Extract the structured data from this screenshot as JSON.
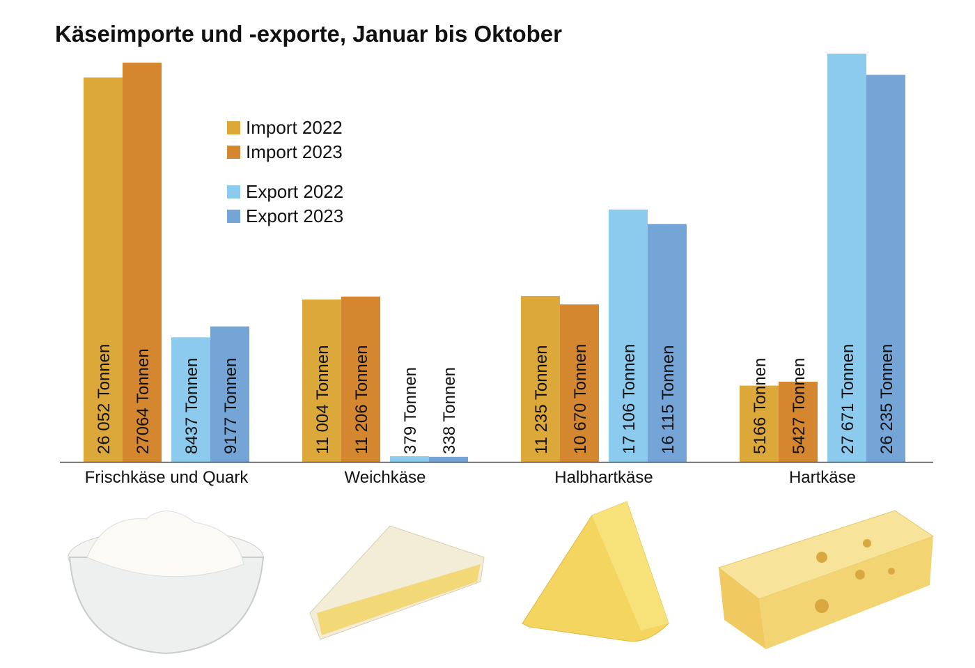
{
  "chart_data": {
    "type": "bar",
    "title": "Käseimporte und -exporte, Januar bis Oktober",
    "categories": [
      "Frischkäse und Quark",
      "Weichkäse",
      "Halbhartkäse",
      "Hartkäse"
    ],
    "unit": "Tonnen",
    "series": [
      {
        "name": "Import 2022",
        "color": "#DDA83A",
        "values": [
          26052,
          11004,
          11235,
          5166
        ],
        "labels": [
          "26 052 Tonnen",
          "11 004 Tonnen",
          "11 235 Tonnen",
          "5166 Tonnen"
        ]
      },
      {
        "name": "Import 2023",
        "color": "#D4872F",
        "values": [
          27064,
          11206,
          10670,
          5427
        ],
        "labels": [
          "27064 Tonnen",
          "11 206 Tonnen",
          "10 670 Tonnen",
          "5427 Tonnen"
        ]
      },
      {
        "name": "Export 2022",
        "color": "#8DCBEE",
        "values": [
          8437,
          379,
          17106,
          27671
        ],
        "labels": [
          "8437 Tonnen",
          "379 Tonnen",
          "17 106 Tonnen",
          "27 671 Tonnen"
        ]
      },
      {
        "name": "Export 2023",
        "color": "#74A5D6",
        "values": [
          9177,
          338,
          16115,
          26235
        ],
        "labels": [
          "9177 Tonnen",
          "338 Tonnen",
          "16 115 Tonnen",
          "26 235 Tonnen"
        ]
      }
    ],
    "ylim": [
      0,
      27671
    ],
    "grid": false,
    "legend_placement": "top-left",
    "images": [
      "cream-cheese-bowl",
      "brie-wedge",
      "semi-hard-cheese-wedge",
      "hard-cheese-block"
    ]
  }
}
